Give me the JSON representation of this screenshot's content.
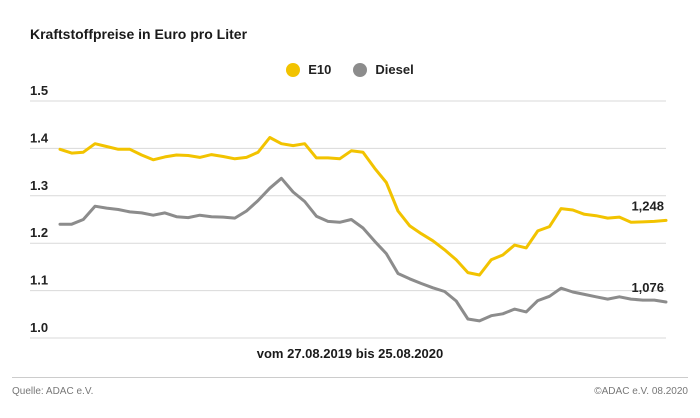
{
  "chart_data": {
    "type": "line",
    "title": "Kraftstoffpreise in Euro pro Liter",
    "subtitle": "vom 27.08.2019 bis 25.08.2020",
    "ylim": [
      1.0,
      1.5
    ],
    "yticks": [
      "1.5",
      "1.4",
      "1.3",
      "1.2",
      "1.1",
      "1.0"
    ],
    "grid": true,
    "legend_position": "top-center",
    "series": [
      {
        "name": "E10",
        "color": "#f2c300",
        "end_label": "1,248",
        "values": [
          1.398,
          1.39,
          1.392,
          1.41,
          1.404,
          1.398,
          1.398,
          1.386,
          1.376,
          1.382,
          1.386,
          1.385,
          1.381,
          1.387,
          1.383,
          1.378,
          1.381,
          1.392,
          1.423,
          1.41,
          1.406,
          1.41,
          1.38,
          1.38,
          1.378,
          1.395,
          1.392,
          1.358,
          1.328,
          1.268,
          1.237,
          1.22,
          1.205,
          1.186,
          1.165,
          1.138,
          1.133,
          1.165,
          1.175,
          1.196,
          1.19,
          1.226,
          1.235,
          1.273,
          1.27,
          1.261,
          1.258,
          1.253,
          1.255,
          1.244,
          1.245,
          1.246,
          1.248
        ]
      },
      {
        "name": "Diesel",
        "color": "#8c8c8c",
        "end_label": "1,076",
        "values": [
          1.24,
          1.24,
          1.25,
          1.278,
          1.274,
          1.271,
          1.266,
          1.264,
          1.259,
          1.264,
          1.256,
          1.254,
          1.259,
          1.256,
          1.255,
          1.253,
          1.268,
          1.29,
          1.316,
          1.337,
          1.308,
          1.288,
          1.257,
          1.246,
          1.244,
          1.25,
          1.232,
          1.204,
          1.178,
          1.136,
          1.125,
          1.115,
          1.106,
          1.098,
          1.078,
          1.04,
          1.036,
          1.047,
          1.051,
          1.061,
          1.055,
          1.079,
          1.088,
          1.105,
          1.097,
          1.092,
          1.087,
          1.082,
          1.087,
          1.082,
          1.08,
          1.08,
          1.076
        ]
      }
    ]
  },
  "footer": {
    "source": "Quelle: ADAC e.V.",
    "copyright": "©ADAC e.V. 08.2020"
  }
}
